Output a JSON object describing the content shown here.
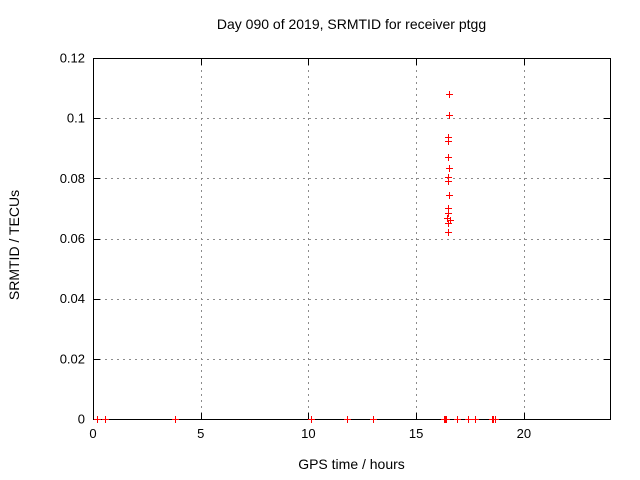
{
  "chart_data": {
    "type": "scatter",
    "title": "Day 090 of 2019, SRMTID for receiver ptgg",
    "xlabel": "GPS time / hours",
    "ylabel": "SRMTID / TECUs",
    "xlim": [
      0,
      24
    ],
    "ylim": [
      0,
      0.12
    ],
    "xticks": [
      0,
      5,
      10,
      15,
      20
    ],
    "x_tick_labels": [
      "0",
      "5",
      "10",
      "15",
      "20"
    ],
    "yticks": [
      0,
      0.02,
      0.04,
      0.06,
      0.08,
      0.1,
      0.12
    ],
    "y_tick_labels": [
      "0",
      "0.02",
      "0.04",
      "0.06",
      "0.08",
      "0.1",
      "0.12"
    ],
    "grid": true,
    "legend": "none",
    "marker": "plus",
    "marker_color": "#ff0000",
    "grid_color": "#8c8c8c",
    "axis_color": "#000000",
    "series": [
      {
        "name": "SRMTID",
        "points": [
          [
            0.2,
            0
          ],
          [
            0.55,
            0
          ],
          [
            3.8,
            0
          ],
          [
            10.1,
            0
          ],
          [
            11.8,
            0
          ],
          [
            13.0,
            0
          ],
          [
            16.28,
            0
          ],
          [
            16.33,
            0
          ],
          [
            16.4,
            0
          ],
          [
            16.9,
            0
          ],
          [
            17.4,
            0
          ],
          [
            17.75,
            0
          ],
          [
            18.5,
            0
          ],
          [
            18.57,
            0
          ],
          [
            18.65,
            0
          ],
          [
            16.53,
            0.108
          ],
          [
            16.53,
            0.101
          ],
          [
            16.5,
            0.0937
          ],
          [
            16.47,
            0.0924
          ],
          [
            16.47,
            0.087
          ],
          [
            16.53,
            0.0833
          ],
          [
            16.47,
            0.0805
          ],
          [
            16.47,
            0.0792
          ],
          [
            16.53,
            0.0745
          ],
          [
            16.47,
            0.0702
          ],
          [
            16.5,
            0.0686
          ],
          [
            16.45,
            0.0668
          ],
          [
            16.55,
            0.0661
          ],
          [
            16.5,
            0.0652
          ],
          [
            16.47,
            0.0623
          ]
        ]
      }
    ]
  }
}
